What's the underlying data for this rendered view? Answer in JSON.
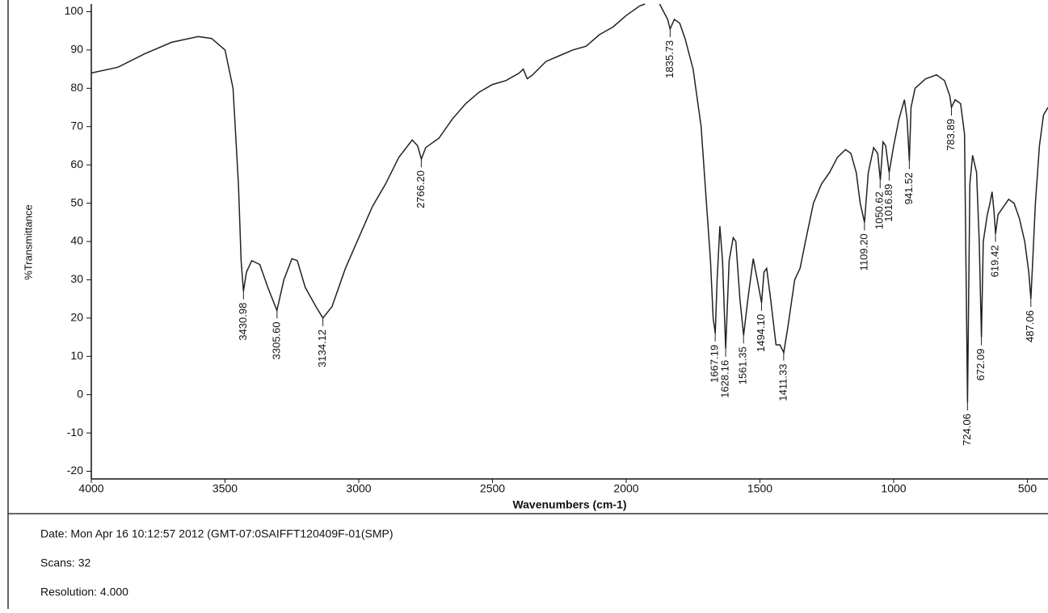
{
  "chart_data": {
    "type": "line",
    "y_label": "%Transmittance",
    "x_label": "Wavenumbers (cm-1)",
    "color": "#222222",
    "xlim": [
      4000,
      423
    ],
    "ylim": [
      -22,
      102
    ],
    "xticks": [
      4000,
      3500,
      3000,
      2500,
      2000,
      1500,
      1000,
      500
    ],
    "yticks": [
      -20,
      -10,
      0,
      10,
      20,
      30,
      40,
      50,
      60,
      70,
      80,
      90,
      100
    ],
    "x": [
      4000,
      3900,
      3800,
      3700,
      3600,
      3550,
      3500,
      3470,
      3450,
      3440,
      3431,
      3420,
      3400,
      3370,
      3340,
      3306,
      3280,
      3250,
      3230,
      3200,
      3160,
      3134,
      3100,
      3050,
      3000,
      2950,
      2900,
      2850,
      2800,
      2780,
      2766,
      2750,
      2700,
      2650,
      2600,
      2550,
      2500,
      2450,
      2400,
      2385,
      2370,
      2350,
      2300,
      2250,
      2200,
      2150,
      2100,
      2050,
      2000,
      1950,
      1930,
      1900,
      1875,
      1860,
      1845,
      1836,
      1820,
      1800,
      1780,
      1750,
      1720,
      1700,
      1685,
      1675,
      1667,
      1660,
      1650,
      1640,
      1628,
      1615,
      1600,
      1590,
      1575,
      1561,
      1545,
      1525,
      1510,
      1494,
      1485,
      1475,
      1460,
      1440,
      1425,
      1411,
      1395,
      1370,
      1350,
      1330,
      1300,
      1270,
      1240,
      1210,
      1180,
      1160,
      1140,
      1125,
      1109,
      1095,
      1075,
      1060,
      1050,
      1040,
      1030,
      1017,
      1000,
      980,
      960,
      950,
      941.5,
      935,
      920,
      880,
      840,
      810,
      790,
      784,
      770,
      750,
      735,
      724,
      715,
      705,
      690,
      680,
      672,
      665,
      650,
      640,
      632,
      625,
      619,
      610,
      590,
      570,
      550,
      530,
      510,
      495,
      487,
      480,
      470,
      455,
      440,
      423
    ],
    "values": [
      84,
      85.5,
      89,
      92,
      93.5,
      93,
      90,
      80,
      55,
      35,
      27,
      32,
      35,
      34,
      28,
      22,
      30,
      35.5,
      35,
      28,
      23,
      20,
      23,
      33,
      41,
      49,
      55,
      62,
      66.5,
      65,
      61.5,
      64.5,
      67,
      72,
      76,
      79,
      81,
      82,
      84,
      85,
      82.5,
      83.5,
      87,
      88.5,
      90,
      91,
      94,
      96,
      99,
      101.5,
      102,
      null,
      102,
      100,
      98,
      95.5,
      98,
      97,
      93,
      85,
      70,
      50,
      35,
      20,
      16,
      30,
      44,
      35,
      12,
      35,
      41,
      40,
      25,
      15.5,
      25,
      35.5,
      30,
      24,
      32,
      33,
      25,
      13,
      13,
      11,
      18,
      30,
      33,
      40,
      50,
      55,
      58,
      62,
      64,
      63,
      58,
      50,
      45,
      58,
      64.5,
      63,
      56,
      66,
      65,
      58,
      65,
      72,
      77,
      72,
      61,
      75,
      80,
      82.5,
      83.5,
      82,
      78,
      75,
      77,
      76,
      68,
      -2,
      55,
      62.5,
      58,
      40,
      15,
      40,
      47,
      50,
      53,
      48,
      42,
      47,
      49,
      51,
      50,
      46,
      40,
      32,
      25,
      35,
      50,
      65,
      73,
      75
    ],
    "annotations": [
      {
        "x": 3430.98,
        "y": 27,
        "label": "3430.98"
      },
      {
        "x": 3305.6,
        "y": 22,
        "label": "3305.60"
      },
      {
        "x": 3134.12,
        "y": 20,
        "label": "3134.12"
      },
      {
        "x": 2766.2,
        "y": 61.5,
        "label": "2766.20"
      },
      {
        "x": 1835.73,
        "y": 95.5,
        "label": "1835.73"
      },
      {
        "x": 1667.19,
        "y": 16,
        "label": "1667.19"
      },
      {
        "x": 1628.16,
        "y": 12,
        "label": "1628.16"
      },
      {
        "x": 1561.35,
        "y": 15.5,
        "label": "1561.35"
      },
      {
        "x": 1494.1,
        "y": 24,
        "label": "1494.10"
      },
      {
        "x": 1411.33,
        "y": 11,
        "label": "1411.33"
      },
      {
        "x": 1109.2,
        "y": 45,
        "label": "1109.20"
      },
      {
        "x": 1050.62,
        "y": 56,
        "label": "1050.62"
      },
      {
        "x": 1016.89,
        "y": 58,
        "label": "1016.89"
      },
      {
        "x": 941.52,
        "y": 61,
        "label": "941.52"
      },
      {
        "x": 783.89,
        "y": 75,
        "label": "783.89"
      },
      {
        "x": 724.06,
        "y": -2,
        "label": "724.06"
      },
      {
        "x": 672.09,
        "y": 15,
        "label": "672.09"
      },
      {
        "x": 619.42,
        "y": 42,
        "label": "619.42"
      },
      {
        "x": 487.06,
        "y": 25,
        "label": "487.06"
      }
    ]
  },
  "footer": {
    "date": "Date: Mon Apr 16 10:12:57 2012 (GMT-07:0SAIFFT120409F-01(SMP)",
    "scans": "Scans: 32",
    "resolution": "Resolution:  4.000"
  }
}
